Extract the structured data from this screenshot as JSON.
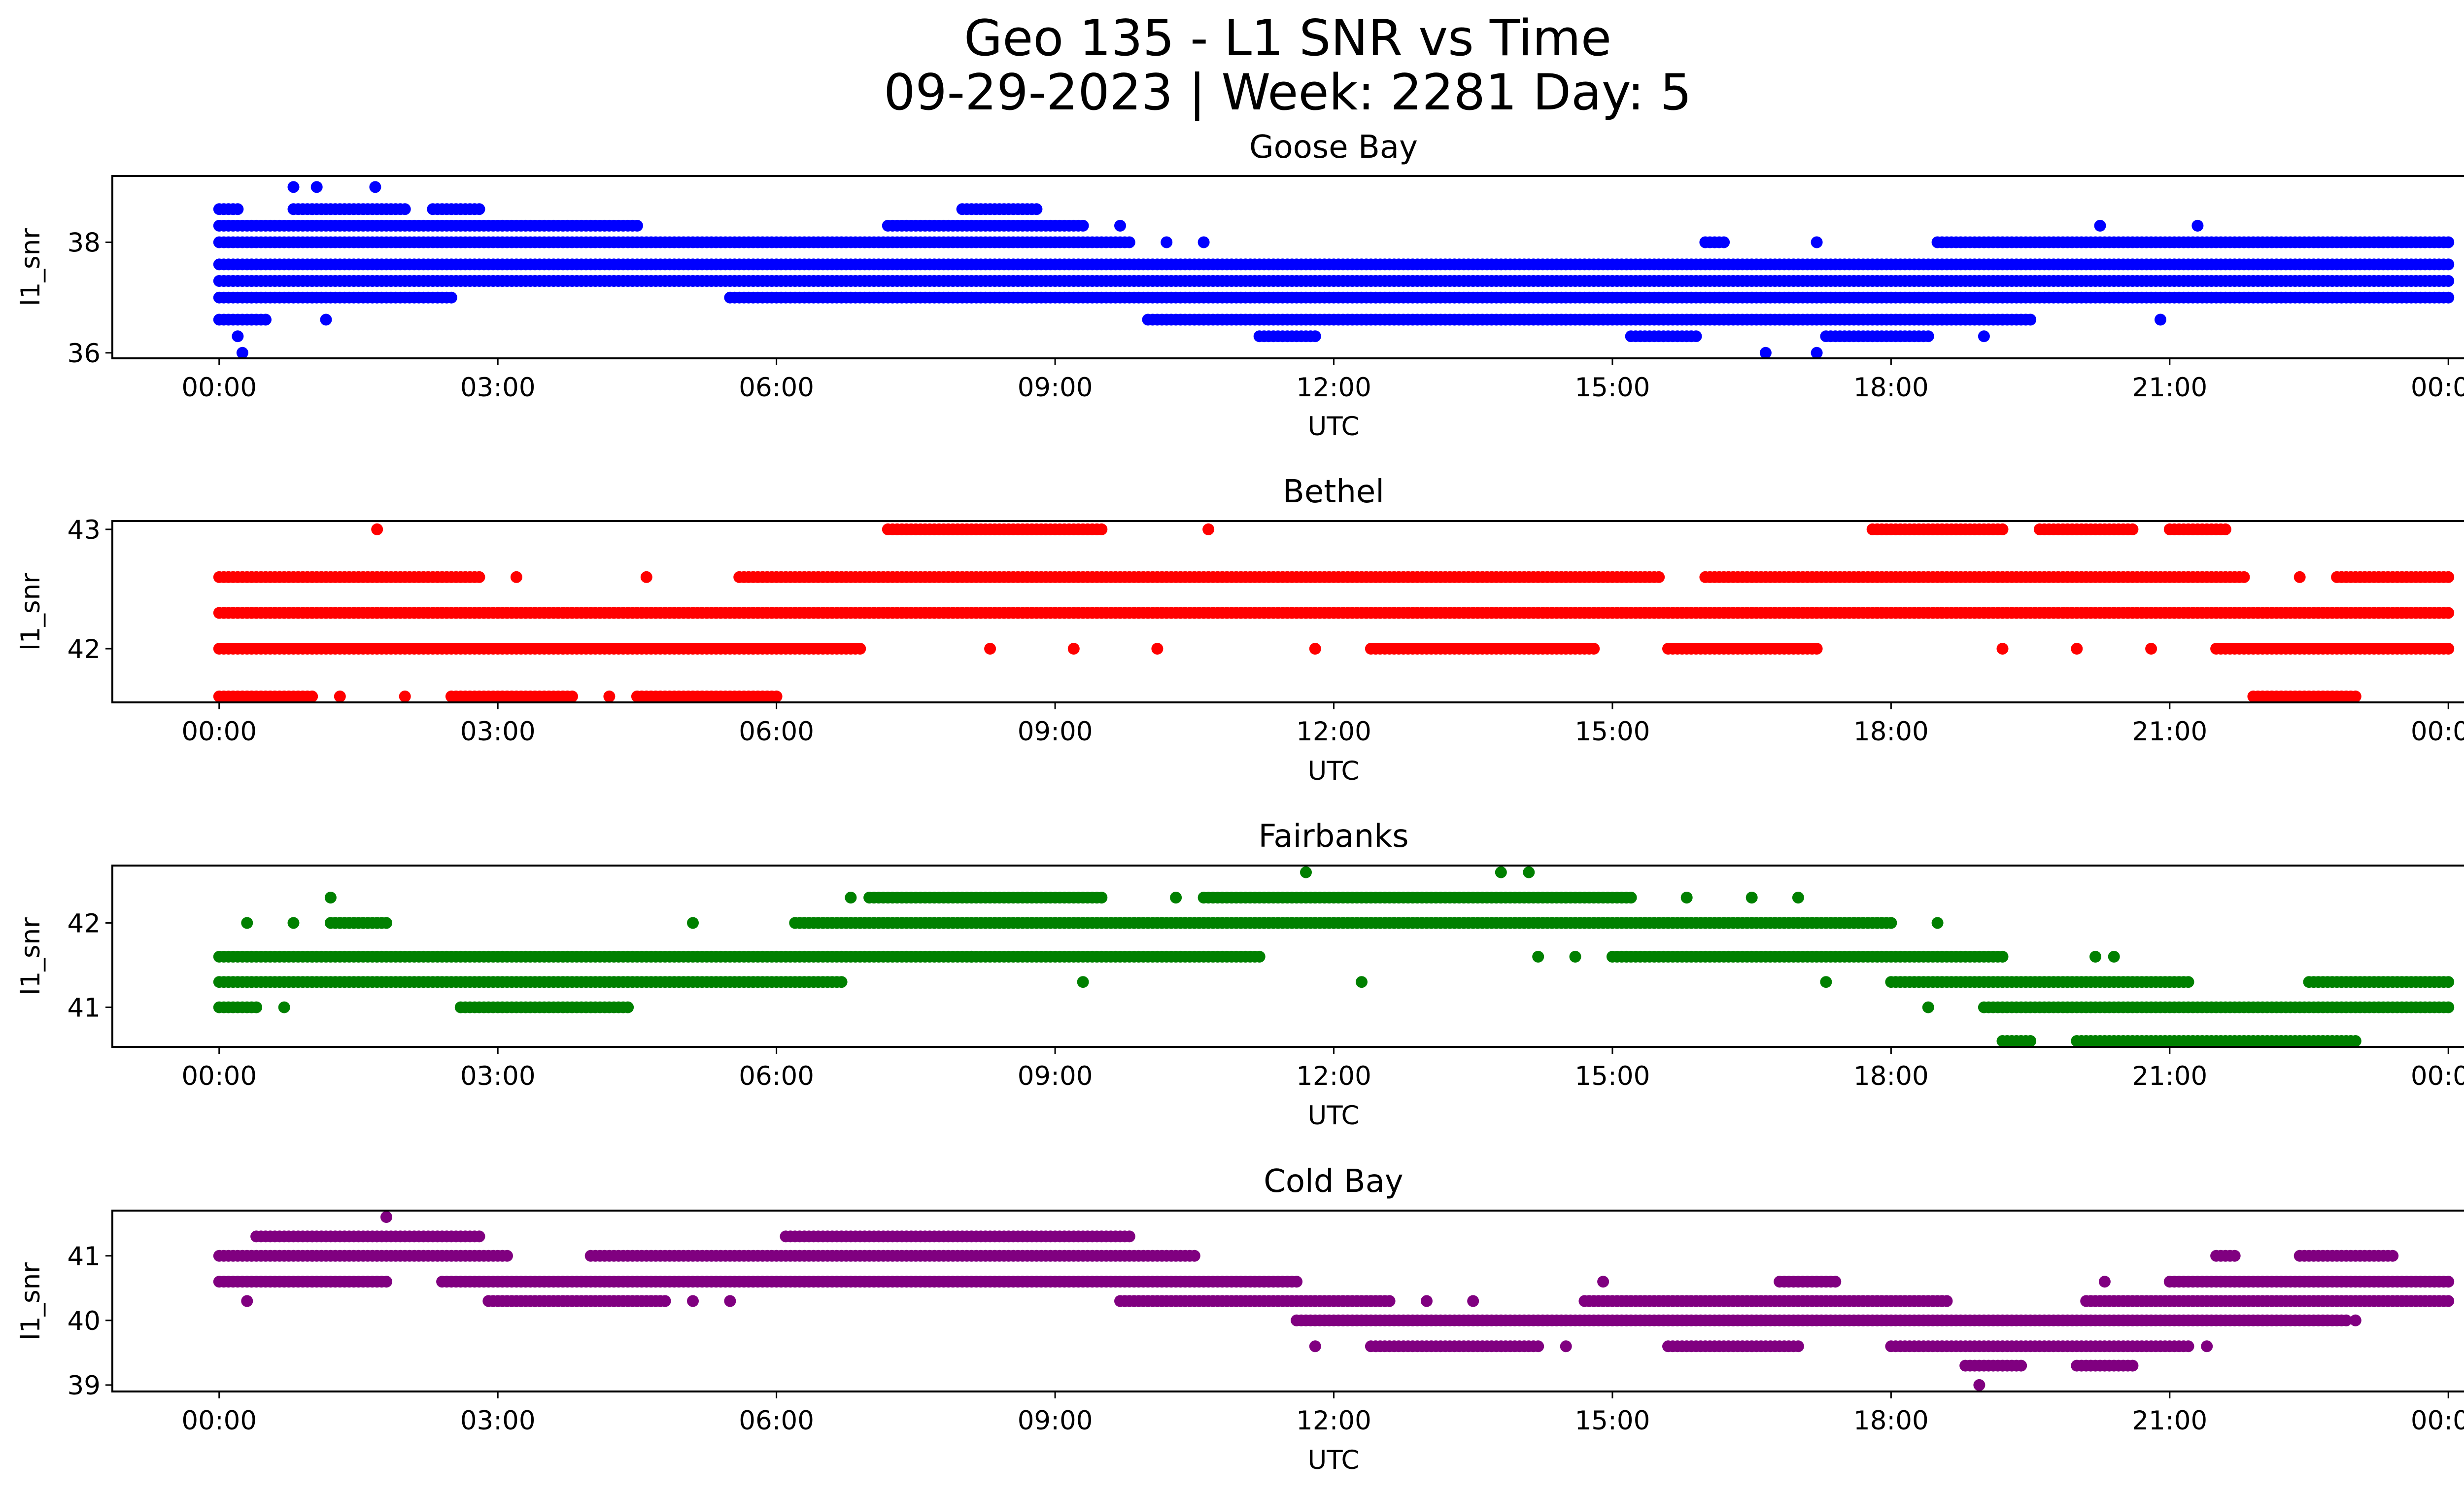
{
  "figure": {
    "title_line1": "Geo 135 - L1 SNR vs Time",
    "title_line2": "09-29-2023 | Week: 2281 Day: 5"
  },
  "chart_data": [
    {
      "type": "scatter",
      "title": "Goose Bay",
      "xlabel": "UTC",
      "ylabel": "l1_snr",
      "color": "#0000ff",
      "x_unit": "hours UTC",
      "xlim": [
        -1.15,
        25.15
      ],
      "ylim": [
        35.9,
        39.2
      ],
      "xticks": [
        "00:00",
        "03:00",
        "06:00",
        "09:00",
        "12:00",
        "15:00",
        "18:00",
        "21:00",
        "00:00"
      ],
      "yticks": [
        36,
        38
      ],
      "bands": [
        {
          "y": 37.6,
          "x_ranges": [
            [
              0.0,
              24.0
            ]
          ]
        },
        {
          "y": 37.3,
          "x_ranges": [
            [
              0.0,
              24.0
            ]
          ]
        },
        {
          "y": 38.0,
          "x_ranges": [
            [
              0.0,
              9.8
            ],
            [
              16.0,
              16.2
            ],
            [
              18.5,
              24.0
            ]
          ]
        },
        {
          "y": 38.3,
          "x_ranges": [
            [
              0.0,
              4.5
            ],
            [
              7.2,
              9.3
            ]
          ]
        },
        {
          "y": 37.0,
          "x_ranges": [
            [
              0.0,
              2.5
            ],
            [
              5.5,
              24.0
            ]
          ]
        },
        {
          "y": 36.6,
          "x_ranges": [
            [
              0.0,
              0.5
            ],
            [
              10.0,
              19.5
            ]
          ]
        },
        {
          "y": 36.3,
          "x_ranges": [
            [
              11.2,
              11.8
            ],
            [
              15.2,
              15.9
            ],
            [
              17.3,
              18.4
            ]
          ]
        },
        {
          "y": 38.6,
          "x_ranges": [
            [
              0.0,
              0.2
            ],
            [
              0.8,
              2.0
            ],
            [
              2.3,
              2.8
            ],
            [
              8.0,
              8.8
            ]
          ]
        }
      ],
      "points": [
        {
          "x": 0.25,
          "y": 36.0
        },
        {
          "x": 16.65,
          "y": 36.0
        },
        {
          "x": 17.2,
          "y": 36.0
        },
        {
          "x": 0.8,
          "y": 39.0
        },
        {
          "x": 1.05,
          "y": 39.0
        },
        {
          "x": 1.68,
          "y": 39.0
        },
        {
          "x": 1.15,
          "y": 36.6
        },
        {
          "x": 0.2,
          "y": 36.3
        },
        {
          "x": 20.25,
          "y": 38.3
        },
        {
          "x": 21.3,
          "y": 38.3
        },
        {
          "x": 9.7,
          "y": 38.3
        },
        {
          "x": 20.9,
          "y": 36.6
        },
        {
          "x": 19.0,
          "y": 36.3
        },
        {
          "x": 17.2,
          "y": 38.0
        },
        {
          "x": 10.6,
          "y": 38.0
        },
        {
          "x": 10.2,
          "y": 38.0
        }
      ]
    },
    {
      "type": "scatter",
      "title": "Bethel",
      "xlabel": "UTC",
      "ylabel": "l1_snr",
      "color": "#ff0000",
      "x_unit": "hours UTC",
      "xlim": [
        -1.15,
        25.15
      ],
      "ylim": [
        41.55,
        43.07
      ],
      "xticks": [
        "00:00",
        "03:00",
        "06:00",
        "09:00",
        "12:00",
        "15:00",
        "18:00",
        "21:00",
        "00:00"
      ],
      "yticks": [
        42,
        43
      ],
      "bands": [
        {
          "y": 42.3,
          "x_ranges": [
            [
              0.0,
              24.0
            ]
          ]
        },
        {
          "y": 42.6,
          "x_ranges": [
            [
              0.0,
              2.8
            ],
            [
              5.6,
              15.5
            ],
            [
              16.0,
              21.8
            ],
            [
              22.8,
              24.0
            ]
          ]
        },
        {
          "y": 42.0,
          "x_ranges": [
            [
              0.0,
              6.9
            ],
            [
              12.4,
              14.8
            ],
            [
              15.6,
              17.2
            ],
            [
              21.5,
              24.0
            ]
          ]
        },
        {
          "y": 41.6,
          "x_ranges": [
            [
              0.0,
              1.0
            ],
            [
              2.5,
              3.8
            ],
            [
              4.5,
              6.0
            ],
            [
              21.9,
              23.0
            ]
          ]
        },
        {
          "y": 43.0,
          "x_ranges": [
            [
              7.2,
              9.5
            ],
            [
              17.8,
              19.2
            ],
            [
              19.6,
              20.6
            ],
            [
              21.0,
              21.6
            ]
          ]
        }
      ],
      "points": [
        {
          "x": 1.7,
          "y": 43.0
        },
        {
          "x": 10.65,
          "y": 43.0
        },
        {
          "x": 3.2,
          "y": 42.6
        },
        {
          "x": 4.6,
          "y": 42.6
        },
        {
          "x": 22.4,
          "y": 42.6
        },
        {
          "x": 8.3,
          "y": 42.0
        },
        {
          "x": 9.2,
          "y": 42.0
        },
        {
          "x": 10.1,
          "y": 42.0
        },
        {
          "x": 11.8,
          "y": 42.0
        },
        {
          "x": 19.2,
          "y": 42.0
        },
        {
          "x": 20.0,
          "y": 42.0
        },
        {
          "x": 20.8,
          "y": 42.0
        },
        {
          "x": 1.3,
          "y": 41.6
        },
        {
          "x": 2.0,
          "y": 41.6
        },
        {
          "x": 4.2,
          "y": 41.6
        }
      ]
    },
    {
      "type": "scatter",
      "title": "Fairbanks",
      "xlabel": "UTC",
      "ylabel": "l1_snr",
      "color": "#008000",
      "x_unit": "hours UTC",
      "xlim": [
        -1.15,
        25.15
      ],
      "ylim": [
        40.53,
        42.68
      ],
      "xticks": [
        "00:00",
        "03:00",
        "06:00",
        "09:00",
        "12:00",
        "15:00",
        "18:00",
        "21:00",
        "00:00"
      ],
      "yticks": [
        41,
        42
      ],
      "bands": [
        {
          "y": 41.6,
          "x_ranges": [
            [
              0.0,
              11.2
            ],
            [
              15.0,
              19.2
            ]
          ]
        },
        {
          "y": 41.3,
          "x_ranges": [
            [
              0.0,
              6.7
            ],
            [
              18.0,
              21.2
            ],
            [
              22.5,
              24.0
            ]
          ]
        },
        {
          "y": 42.0,
          "x_ranges": [
            [
              1.2,
              1.8
            ],
            [
              6.2,
              18.0
            ]
          ]
        },
        {
          "y": 41.0,
          "x_ranges": [
            [
              0.0,
              0.4
            ],
            [
              2.6,
              4.4
            ],
            [
              19.0,
              24.0
            ]
          ]
        },
        {
          "y": 42.3,
          "x_ranges": [
            [
              7.0,
              9.5
            ],
            [
              10.6,
              15.2
            ]
          ]
        },
        {
          "y": 40.6,
          "x_ranges": [
            [
              19.2,
              19.5
            ],
            [
              20.0,
              23.0
            ]
          ]
        }
      ],
      "points": [
        {
          "x": 0.3,
          "y": 42.0
        },
        {
          "x": 0.8,
          "y": 42.0
        },
        {
          "x": 5.1,
          "y": 42.0
        },
        {
          "x": 18.5,
          "y": 42.0
        },
        {
          "x": 1.2,
          "y": 42.3
        },
        {
          "x": 6.8,
          "y": 42.3
        },
        {
          "x": 10.3,
          "y": 42.3
        },
        {
          "x": 15.8,
          "y": 42.3
        },
        {
          "x": 16.5,
          "y": 42.3
        },
        {
          "x": 17.0,
          "y": 42.3
        },
        {
          "x": 11.7,
          "y": 42.6
        },
        {
          "x": 13.8,
          "y": 42.6
        },
        {
          "x": 14.1,
          "y": 42.6
        },
        {
          "x": 0.7,
          "y": 41.0
        },
        {
          "x": 18.4,
          "y": 41.0
        },
        {
          "x": 17.3,
          "y": 41.3
        },
        {
          "x": 9.3,
          "y": 41.3
        },
        {
          "x": 12.3,
          "y": 41.3
        },
        {
          "x": 20.2,
          "y": 41.6
        },
        {
          "x": 20.4,
          "y": 41.6
        },
        {
          "x": 14.2,
          "y": 41.6
        },
        {
          "x": 14.6,
          "y": 41.6
        },
        {
          "x": 8.1,
          "y": 41.6
        }
      ]
    },
    {
      "type": "scatter",
      "title": "Cold Bay",
      "xlabel": "UTC",
      "ylabel": "l1_snr",
      "color": "#800080",
      "x_unit": "hours UTC",
      "xlim": [
        -1.15,
        25.15
      ],
      "ylim": [
        38.9,
        41.7
      ],
      "xticks": [
        "00:00",
        "03:00",
        "06:00",
        "09:00",
        "12:00",
        "15:00",
        "18:00",
        "21:00",
        "00:00"
      ],
      "yticks": [
        39,
        40,
        41
      ],
      "bands": [
        {
          "y": 41.0,
          "x_ranges": [
            [
              0.0,
              3.1
            ],
            [
              4.0,
              10.5
            ],
            [
              21.5,
              21.7
            ],
            [
              22.4,
              23.4
            ]
          ]
        },
        {
          "y": 40.6,
          "x_ranges": [
            [
              0.0,
              1.8
            ],
            [
              2.4,
              11.6
            ],
            [
              16.8,
              17.4
            ],
            [
              21.0,
              24.0
            ]
          ]
        },
        {
          "y": 40.3,
          "x_ranges": [
            [
              2.9,
              4.8
            ],
            [
              9.7,
              12.6
            ],
            [
              14.7,
              18.6
            ],
            [
              20.1,
              24.0
            ]
          ]
        },
        {
          "y": 41.3,
          "x_ranges": [
            [
              0.4,
              2.8
            ],
            [
              6.1,
              9.8
            ]
          ]
        },
        {
          "y": 40.0,
          "x_ranges": [
            [
              11.6,
              22.9
            ]
          ]
        },
        {
          "y": 39.6,
          "x_ranges": [
            [
              12.4,
              14.2
            ],
            [
              15.6,
              17.0
            ],
            [
              18.0,
              21.2
            ]
          ]
        },
        {
          "y": 39.3,
          "x_ranges": [
            [
              18.8,
              19.4
            ],
            [
              20.0,
              20.6
            ]
          ]
        }
      ],
      "points": [
        {
          "x": 1.8,
          "y": 41.6
        },
        {
          "x": 0.3,
          "y": 40.3
        },
        {
          "x": 5.1,
          "y": 40.3
        },
        {
          "x": 5.5,
          "y": 40.3
        },
        {
          "x": 14.9,
          "y": 40.6
        },
        {
          "x": 20.3,
          "y": 40.6
        },
        {
          "x": 11.8,
          "y": 39.6
        },
        {
          "x": 18.95,
          "y": 39.0
        },
        {
          "x": 23.0,
          "y": 40.0
        },
        {
          "x": 13.0,
          "y": 40.3
        },
        {
          "x": 21.4,
          "y": 39.6
        },
        {
          "x": 14.5,
          "y": 39.6
        },
        {
          "x": 13.5,
          "y": 40.3
        }
      ]
    }
  ]
}
